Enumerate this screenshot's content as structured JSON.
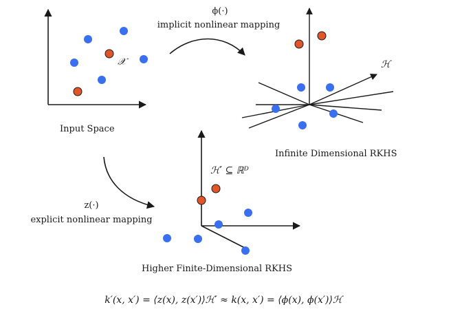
{
  "input_space": {
    "caption": "Input Space",
    "set_label": "𝒳"
  },
  "implicit_mapping": {
    "symbol": "ϕ(·)",
    "description": "implicit nonlinear mapping"
  },
  "infinite_rkhs": {
    "caption": "Infinite Dimensional RKHS",
    "space_label": "ℋ"
  },
  "explicit_mapping": {
    "symbol": "z(·)",
    "description": "explicit nonlinear mapping"
  },
  "finite_rkhs": {
    "caption": "Higher Finite-Dimensional RKHS",
    "space_label": "ℋ′ ⊆ ℝᴰ"
  },
  "formula": "k′(x, x′) = ⟨z(x), z(x′)⟩ℋ′ ≈ k(x, x′) = ⟨ϕ(x), ϕ(x′)⟩ℋ",
  "colors": {
    "blue_point": "#3a6ff0",
    "red_point": "#e0562a"
  }
}
